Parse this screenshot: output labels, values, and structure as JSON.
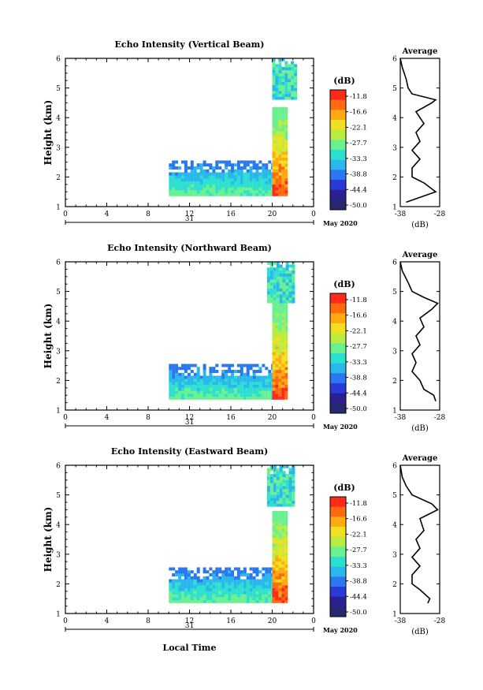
{
  "figure": {
    "colorbar_unit": "(dB)",
    "colorbar_ticks": [
      "-11.8",
      "-16.6",
      "-22.1",
      "-27.7",
      "-33.3",
      "-38.8",
      "-44.4",
      "-50.0"
    ],
    "colorbar_colors": [
      "#ff2a1a",
      "#ff6a10",
      "#ffaa10",
      "#f0e020",
      "#b8ec40",
      "#6af090",
      "#2ce0d0",
      "#2ab8ec",
      "#2a78f0",
      "#2a3ad8",
      "#2a2090",
      "#282870"
    ],
    "date_label": "May 2020",
    "day_label": "31",
    "xlabel": "Local Time",
    "x_ticks": [
      "0",
      "4",
      "8",
      "12",
      "16",
      "20",
      "0"
    ],
    "y_ticks": [
      "1",
      "2",
      "3",
      "4",
      "5",
      "6"
    ],
    "ylabel": "Height (km)",
    "avg_title": "Average",
    "avg_xlabel": "(dB)",
    "avg_ticks": [
      "-38",
      "-28"
    ]
  },
  "chart_data": [
    {
      "type": "heatmap",
      "title": "Echo Intensity (Vertical Beam)",
      "xlabel": "",
      "ylabel": "Height (km)",
      "xlim": [
        0,
        24
      ],
      "ylim": [
        1,
        6
      ],
      "units": "dB",
      "regions": [
        {
          "x": [
            10,
            20
          ],
          "y": [
            1.35,
            2.5
          ],
          "level": "low"
        },
        {
          "x": [
            20,
            21.5
          ],
          "y": [
            1.35,
            4.3
          ],
          "level": "high"
        },
        {
          "x": [
            20,
            22.2
          ],
          "y": [
            4.6,
            5.9
          ],
          "level": "mid"
        }
      ],
      "avg_profile": {
        "x_range": [
          -38,
          -28
        ],
        "height": [
          1.15,
          1.5,
          1.8,
          2.0,
          2.3,
          2.6,
          2.9,
          3.2,
          3.5,
          3.8,
          4.2,
          4.5,
          4.6,
          4.8,
          5.0,
          5.3,
          5.7,
          6.0
        ],
        "db": [
          -36.5,
          -29,
          -32,
          -35,
          -35,
          -33,
          -35,
          -33,
          -34,
          -32,
          -34,
          -30,
          -29,
          -35,
          -36,
          -36.5,
          -37.5,
          -38
        ]
      }
    },
    {
      "type": "heatmap",
      "title": "Echo Intensity (Northward Beam)",
      "xlabel": "",
      "ylabel": "Height (km)",
      "xlim": [
        0,
        24
      ],
      "ylim": [
        1,
        6
      ],
      "units": "dB",
      "regions": [
        {
          "x": [
            10,
            20
          ],
          "y": [
            1.35,
            2.5
          ],
          "level": "low"
        },
        {
          "x": [
            20,
            21.5
          ],
          "y": [
            1.35,
            4.6
          ],
          "level": "high"
        },
        {
          "x": [
            19.5,
            22.2
          ],
          "y": [
            4.6,
            5.9
          ],
          "level": "mid"
        }
      ],
      "avg_profile": {
        "x_range": [
          -38,
          -28
        ],
        "height": [
          1.3,
          1.5,
          1.7,
          2.0,
          2.3,
          2.6,
          2.9,
          3.2,
          3.5,
          3.8,
          4.1,
          4.4,
          4.6,
          4.8,
          5.0,
          5.3,
          5.7,
          6.0
        ],
        "db": [
          -29,
          -29.5,
          -32,
          -33,
          -35,
          -34,
          -35,
          -33,
          -34,
          -32,
          -33,
          -30,
          -28.5,
          -32,
          -35,
          -36,
          -37.5,
          -38
        ]
      }
    },
    {
      "type": "heatmap",
      "title": "Echo Intensity (Eastward Beam)",
      "xlabel": "Local Time",
      "ylabel": "Height (km)",
      "xlim": [
        0,
        24
      ],
      "ylim": [
        1,
        6
      ],
      "units": "dB",
      "regions": [
        {
          "x": [
            10,
            20
          ],
          "y": [
            1.35,
            2.5
          ],
          "level": "low"
        },
        {
          "x": [
            20,
            21.5
          ],
          "y": [
            1.35,
            4.4
          ],
          "level": "high"
        },
        {
          "x": [
            19.5,
            22.2
          ],
          "y": [
            4.6,
            5.9
          ],
          "level": "mid"
        }
      ],
      "avg_profile": {
        "x_range": [
          -38,
          -28
        ],
        "height": [
          1.35,
          1.5,
          1.8,
          2.0,
          2.3,
          2.6,
          2.9,
          3.2,
          3.5,
          3.8,
          4.2,
          4.5,
          4.7,
          5.0,
          5.3,
          5.6,
          6.0
        ],
        "db": [
          -31,
          -30.5,
          -33,
          -35,
          -35,
          -33,
          -35,
          -33,
          -34,
          -32,
          -33,
          -28.5,
          -30,
          -35,
          -36.5,
          -37.5,
          -38
        ]
      }
    }
  ]
}
